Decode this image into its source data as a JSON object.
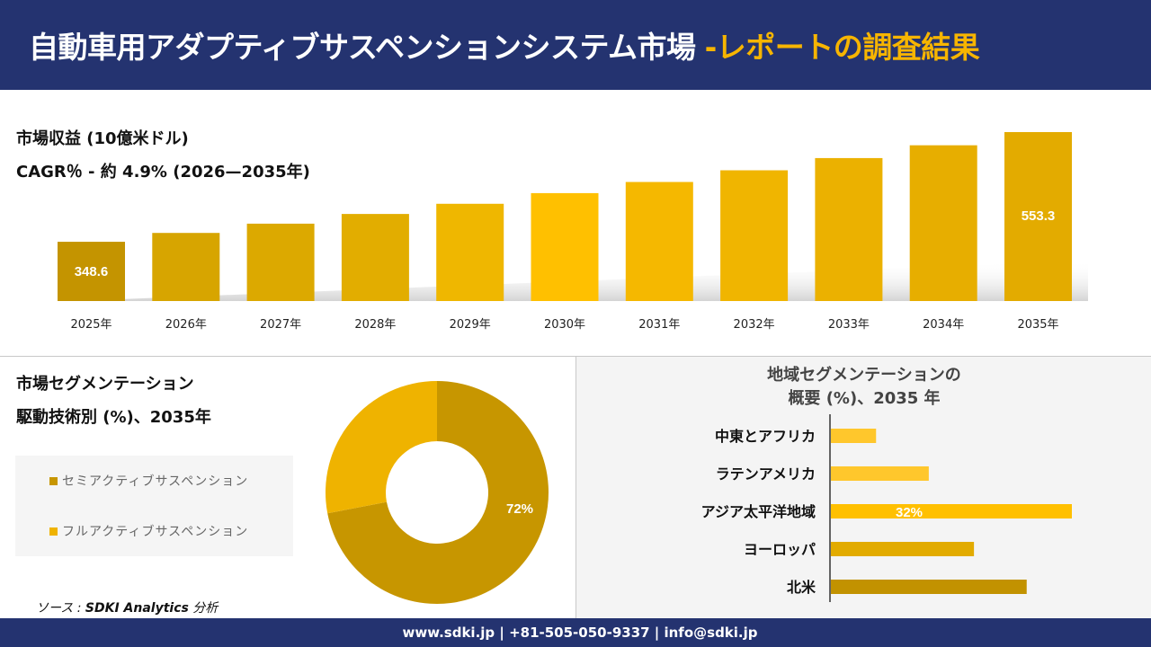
{
  "header": {
    "title": "自動車用アダプティブサスペンションシステム市場",
    "subtitle": "-レポートの調査結果"
  },
  "revenue": {
    "title": "市場収益 (10億米ドル)",
    "cagr": "CAGR％ - 約 4.9% (2026—2035年)"
  },
  "segmentation": {
    "title": "市場セグメンテーション",
    "subtitle": "駆動技術別 (%)、2035年"
  },
  "source": {
    "prefix": "ソース : ",
    "name": "SDKI Analytics",
    "suffix": " 分析"
  },
  "footer": {
    "text": "www.sdki.jp | +81-505-050-9337 | info@sdki.jp"
  },
  "colors": {
    "navy": "#243370",
    "accent": "#F7B500"
  },
  "chart_data": [
    {
      "type": "bar",
      "title": "市場収益 (10億米ドル)",
      "categories": [
        "2025年",
        "2026年",
        "2027年",
        "2028年",
        "2029年",
        "2030年",
        "2031年",
        "2032年",
        "2033年",
        "2034年",
        "2035年"
      ],
      "values": [
        348.6,
        365.1,
        382.4,
        400.5,
        419.5,
        439.4,
        460.2,
        482.0,
        504.8,
        528.7,
        553.3
      ],
      "data_labels": [
        "348.6",
        "",
        "",
        "",
        "",
        "",
        "",
        "",
        "",
        "",
        "553.3"
      ],
      "colors": [
        "#C49400",
        "#D7A500",
        "#DCA900",
        "#E2AD00",
        "#EFB700",
        "#FFC000",
        "#F5B800",
        "#F0B500",
        "#EBB100",
        "#E7AE00",
        "#E3AB00"
      ],
      "ylim": [
        238,
        560
      ],
      "grid": false
    },
    {
      "type": "pie",
      "variant": "donut",
      "title": "駆動技術別 (%)、2035年",
      "labels": [
        "セミアクティブサスペンション",
        "フルアクティブサスペンション"
      ],
      "values": [
        72,
        28
      ],
      "data_labels": [
        "72%",
        ""
      ],
      "colors": [
        "#C79600",
        "#EFB300"
      ],
      "legend": "left"
    },
    {
      "type": "bar",
      "orientation": "horizontal",
      "title": "地域セグメンテーションの\n概要 (%)、2035 年",
      "title_lines": [
        "地域セグメンテーションの",
        "概要 (%)、2035 年"
      ],
      "categories": [
        "中東とアフリカ",
        "ラテンアメリカ",
        "アジア太平洋地域",
        "ヨーロッパ",
        "北米"
      ],
      "values": [
        6,
        13,
        32,
        19,
        26
      ],
      "data_labels": [
        "",
        "",
        "32%",
        "",
        ""
      ],
      "colors": [
        "#FFC72C",
        "#FFC72C",
        "#FFC000",
        "#E2AB00",
        "#C29200"
      ],
      "xlim": [
        0,
        32
      ]
    }
  ]
}
